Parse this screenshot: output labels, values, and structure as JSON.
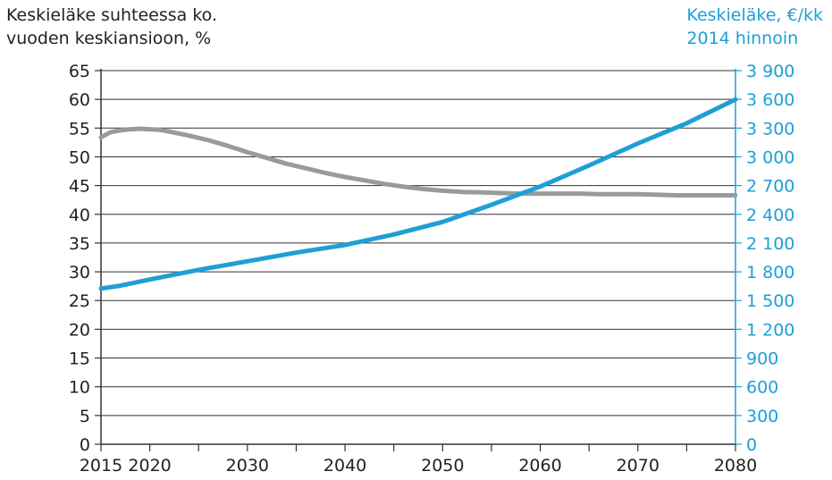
{
  "chart_data": {
    "type": "line",
    "left_axis": {
      "title_lines": [
        "Keskieläke suhteessa ko.",
        "vuoden keskiansioon, %"
      ],
      "ylim": [
        0,
        65
      ],
      "ticks": [
        "0",
        "5",
        "10",
        "15",
        "20",
        "25",
        "30",
        "35",
        "40",
        "45",
        "50",
        "55",
        "60",
        "65"
      ],
      "color": "#222222"
    },
    "right_axis": {
      "title_lines": [
        "Keskieläke, €/kk",
        "2014 hinnoin"
      ],
      "ylim": [
        0,
        3900
      ],
      "ticks": [
        "0",
        "300",
        "600",
        "900",
        "1 200",
        "1 500",
        "1 800",
        "2 100",
        "2 400",
        "2 700",
        "3 000",
        "3 300",
        "3 600",
        "3 900"
      ],
      "color": "#1e9fd6"
    },
    "x_axis": {
      "xlim": [
        2015,
        2080
      ],
      "tick_labels": [
        {
          "value": 2015,
          "label": "2015"
        },
        {
          "value": 2020,
          "label": "2020"
        },
        {
          "value": 2030,
          "label": "2030"
        },
        {
          "value": 2040,
          "label": "2040"
        },
        {
          "value": 2050,
          "label": "2050"
        },
        {
          "value": 2060,
          "label": "2060"
        },
        {
          "value": 2070,
          "label": "2070"
        },
        {
          "value": 2080,
          "label": "2080"
        }
      ],
      "minor_ticks": [
        2015,
        2020,
        2025,
        2030,
        2035,
        2040,
        2045,
        2050,
        2055,
        2060,
        2065,
        2070,
        2075,
        2080
      ]
    },
    "grid": true,
    "series": [
      {
        "axis": "left",
        "color": "#9a9a9a",
        "x": [
          2015,
          2016,
          2017,
          2018,
          2019,
          2020,
          2021,
          2022,
          2024,
          2026,
          2028,
          2030,
          2032,
          2034,
          2036,
          2038,
          2040,
          2042,
          2044,
          2046,
          2048,
          2050,
          2052,
          2054,
          2056,
          2058,
          2060,
          2062,
          2064,
          2066,
          2068,
          2070,
          2072,
          2074,
          2076,
          2078,
          2080
        ],
        "values": [
          53.4,
          54.3,
          54.6,
          54.8,
          54.9,
          54.8,
          54.7,
          54.4,
          53.7,
          52.9,
          51.9,
          50.8,
          49.8,
          48.8,
          48.0,
          47.2,
          46.5,
          45.9,
          45.3,
          44.8,
          44.4,
          44.1,
          43.9,
          43.8,
          43.7,
          43.6,
          43.6,
          43.6,
          43.6,
          43.5,
          43.5,
          43.5,
          43.4,
          43.3,
          43.3,
          43.3,
          43.3
        ]
      },
      {
        "axis": "right",
        "color": "#1e9fd6",
        "x": [
          2015,
          2017,
          2020,
          2025,
          2030,
          2035,
          2040,
          2045,
          2050,
          2055,
          2060,
          2065,
          2070,
          2075,
          2080
        ],
        "values": [
          1625,
          1655,
          1720,
          1820,
          1910,
          2000,
          2080,
          2190,
          2320,
          2500,
          2690,
          2910,
          3140,
          3350,
          3600
        ]
      }
    ]
  }
}
